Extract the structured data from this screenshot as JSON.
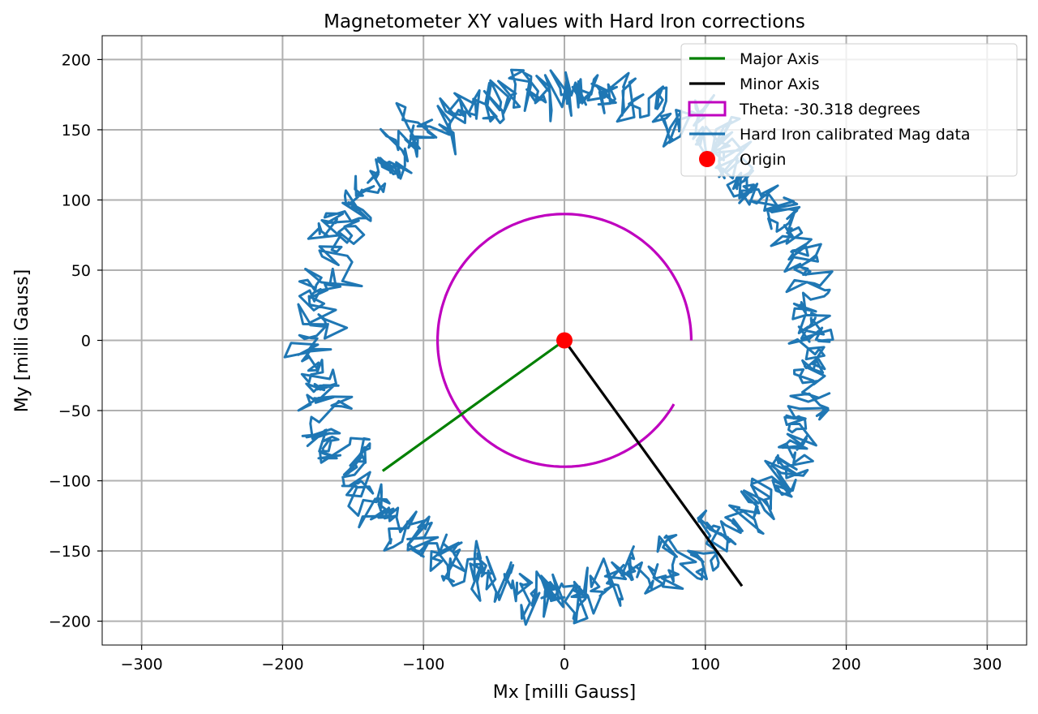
{
  "chart_data": {
    "type": "line",
    "title": "Magnetometer XY values with Hard Iron corrections",
    "xlabel": "Mx [milli Gauss]",
    "ylabel": "My [milli Gauss]",
    "xlim": [
      -328,
      328
    ],
    "ylim": [
      -217,
      217
    ],
    "grid": true,
    "x_ticks": [
      -300,
      -200,
      -100,
      0,
      100,
      200,
      300
    ],
    "y_ticks": [
      -200,
      -150,
      -100,
      -50,
      0,
      50,
      100,
      150,
      200
    ],
    "x_tick_labels": [
      "−300",
      "−200",
      "−100",
      "0",
      "100",
      "200",
      "300"
    ],
    "y_tick_labels": [
      "−200",
      "−150",
      "−100",
      "−50",
      "0",
      "50",
      "100",
      "150",
      "200"
    ],
    "legend_position": "top-right",
    "series": [
      {
        "name": "Major Axis",
        "kind": "line",
        "color": "#008000",
        "points": [
          [
            0,
            0
          ],
          [
            -129,
            -93
          ]
        ]
      },
      {
        "name": "Minor Axis",
        "kind": "line",
        "color": "#000000",
        "points": [
          [
            0,
            0
          ],
          [
            126,
            -175
          ]
        ]
      },
      {
        "name": "Theta: -30.318 degrees",
        "kind": "arc",
        "color": "#bf00bf",
        "center": [
          0,
          0
        ],
        "radius": 90,
        "start_deg": 0,
        "sweep_deg": 329.682
      },
      {
        "name": "Hard Iron calibrated Mag data",
        "kind": "noisy-ellipse",
        "color": "#1f77b4",
        "center": [
          0,
          0
        ],
        "rx": 175,
        "ry": 178,
        "noise": 12,
        "samples": 1100
      },
      {
        "name": "Origin",
        "kind": "point",
        "color": "#ff0000",
        "points": [
          [
            0,
            0
          ]
        ]
      }
    ]
  }
}
